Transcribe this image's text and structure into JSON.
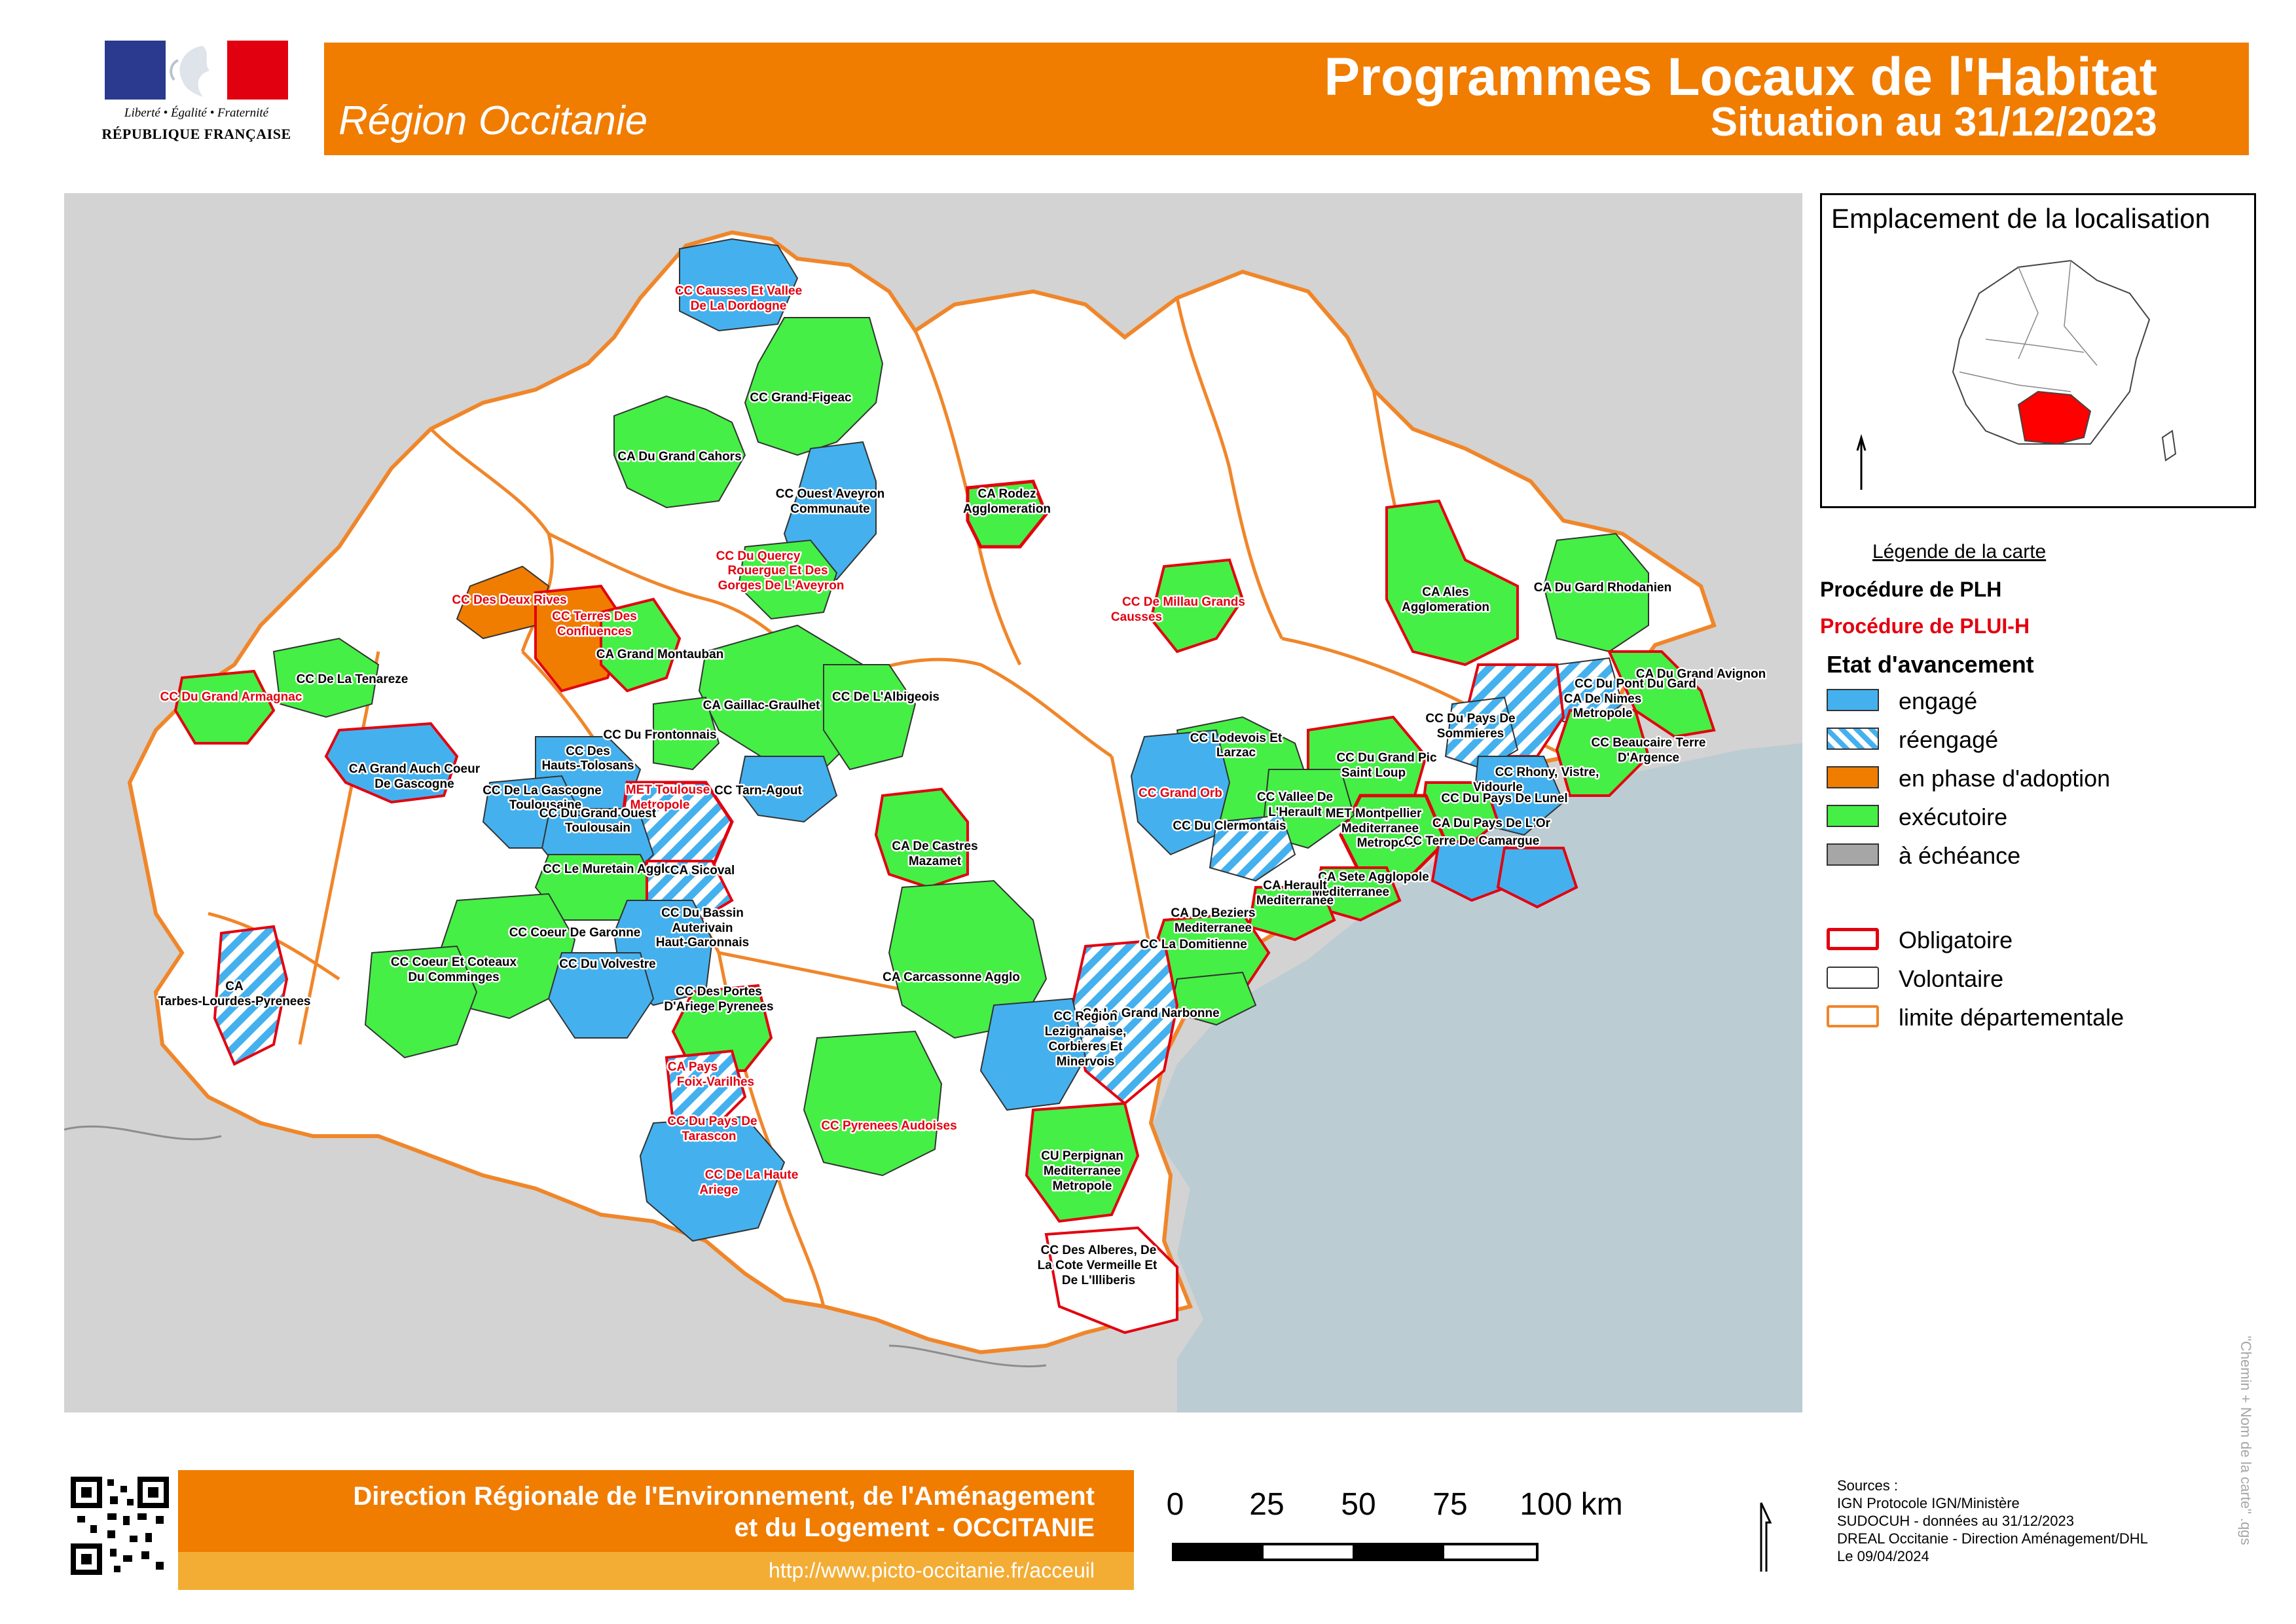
{
  "header": {
    "title": "Programmes Locaux de l'Habitat",
    "subtitle": "Situation au 31/12/2023",
    "region": "Région Occitanie",
    "logo": {
      "motto": "Liberté • Égalité • Fraternité",
      "name": "RÉPUBLIQUE FRANÇAISE"
    }
  },
  "locator": {
    "title": "Emplacement de la localisation",
    "highlight_color": "#ff0000"
  },
  "legend": {
    "title": "Légende de la carte",
    "procedure_plh": "Procédure de PLH",
    "procedure_pluih": "Procédure de PLUI-H",
    "status_title": "Etat d'avancement",
    "statuses": [
      {
        "label": "engagé",
        "color": "#44b1ee",
        "pattern": "solid"
      },
      {
        "label": "réengagé",
        "color": "#44b1ee",
        "pattern": "hatched"
      },
      {
        "label": "en phase d'adoption",
        "color": "#f07c00",
        "pattern": "solid"
      },
      {
        "label": "exécutoire",
        "color": "#45ef45",
        "pattern": "solid"
      },
      {
        "label": "à échéance",
        "color": "#a6a6a6",
        "pattern": "solid"
      }
    ],
    "boundaries": [
      {
        "label": "Obligatoire",
        "color": "#e3000f"
      },
      {
        "label": "Volontaire",
        "color": "#333333"
      },
      {
        "label": "limite départementale",
        "color": "#f0862a"
      }
    ]
  },
  "map": {
    "colors": {
      "land_outside": "#d2d3d2",
      "sea": "#bbccd3",
      "region_fill": "#ffffff",
      "dept_line": "#f0862a",
      "obligatoire": "#e3000f"
    },
    "labels": [
      {
        "text": "CC Causses Et Vallee",
        "style": "plui"
      },
      {
        "text": "De La Dordogne",
        "style": "plui"
      },
      {
        "text": "CC Grand-Figeac",
        "style": "plh"
      },
      {
        "text": "CA Du Grand Cahors",
        "style": "plh"
      },
      {
        "text": "CC Ouest Aveyron",
        "style": "plh"
      },
      {
        "text": "Communaute",
        "style": "plh"
      },
      {
        "text": "CA Rodez",
        "style": "plh"
      },
      {
        "text": "Agglomeration",
        "style": "plh"
      },
      {
        "text": "CC Du Quercy",
        "style": "plui"
      },
      {
        "text": "Rouergue Et Des",
        "style": "plui"
      },
      {
        "text": "Gorges De L'Aveyron",
        "style": "plui"
      },
      {
        "text": "CC Des Deux Rives",
        "style": "plui"
      },
      {
        "text": "CC Terres Des",
        "style": "plui"
      },
      {
        "text": "Confluences",
        "style": "plui"
      },
      {
        "text": "CA Grand Montauban",
        "style": "plh"
      },
      {
        "text": "CC De Millau Grands",
        "style": "plui"
      },
      {
        "text": "Causses",
        "style": "plui"
      },
      {
        "text": "CA Ales",
        "style": "plh"
      },
      {
        "text": "Agglomeration",
        "style": "plh"
      },
      {
        "text": "CA Du Gard Rhodanien",
        "style": "plh"
      },
      {
        "text": "CC De La Tenareze",
        "style": "plh"
      },
      {
        "text": "CC Du Grand Armagnac",
        "style": "plui"
      },
      {
        "text": "CA Gaillac-Graulhet",
        "style": "plh"
      },
      {
        "text": "CC De L'Albigeois",
        "style": "plh"
      },
      {
        "text": "CA Du Grand Avignon",
        "style": "plh"
      },
      {
        "text": "CC Du Pont Du Gard",
        "style": "plh"
      },
      {
        "text": "CA De Nimes",
        "style": "plh"
      },
      {
        "text": "Metropole",
        "style": "plh"
      },
      {
        "text": "CC Du Frontonnais",
        "style": "plh"
      },
      {
        "text": "CA Grand Auch Coeur",
        "style": "plh"
      },
      {
        "text": "De Gascogne",
        "style": "plh"
      },
      {
        "text": "CC Des",
        "style": "plh"
      },
      {
        "text": "Hauts-Tolosans",
        "style": "plh"
      },
      {
        "text": "CC De La Gascogne",
        "style": "plh"
      },
      {
        "text": "Toulousaine",
        "style": "plh"
      },
      {
        "text": "MET Toulouse",
        "style": "plui"
      },
      {
        "text": "Metropole",
        "style": "plui"
      },
      {
        "text": "CC Tarn-Agout",
        "style": "plh"
      },
      {
        "text": "CC Du Grand Ouest",
        "style": "plh"
      },
      {
        "text": "Toulousain",
        "style": "plh"
      },
      {
        "text": "CC Lodevois Et",
        "style": "plh"
      },
      {
        "text": "Larzac",
        "style": "plh"
      },
      {
        "text": "CC Du Pays De",
        "style": "plh"
      },
      {
        "text": "Sommieres",
        "style": "plh"
      },
      {
        "text": "CC Beaucaire Terre",
        "style": "plh"
      },
      {
        "text": "D'Argence",
        "style": "plh"
      },
      {
        "text": "CC Du Grand Pic",
        "style": "plh"
      },
      {
        "text": "Saint Loup",
        "style": "plh"
      },
      {
        "text": "CC Rhony, Vistre,",
        "style": "plh"
      },
      {
        "text": "Vidourle",
        "style": "plh"
      },
      {
        "text": "CC Du Pays De Lunel",
        "style": "plh"
      },
      {
        "text": "MET Montpellier",
        "style": "plh"
      },
      {
        "text": "Mediterranee",
        "style": "plh"
      },
      {
        "text": "Metropole",
        "style": "plh"
      },
      {
        "text": "CA Du Pays De L'Or",
        "style": "plh"
      },
      {
        "text": "CC Terre De Camargue",
        "style": "plh"
      },
      {
        "text": "CC Grand Orb",
        "style": "plui"
      },
      {
        "text": "CC Vallee De",
        "style": "plh"
      },
      {
        "text": "L'Herault",
        "style": "plh"
      },
      {
        "text": "CC Du Clermontais",
        "style": "plh"
      },
      {
        "text": "CA De Castres",
        "style": "plh"
      },
      {
        "text": "Mazamet",
        "style": "plh"
      },
      {
        "text": "CC Le Muretain Agglo",
        "style": "plh"
      },
      {
        "text": "CA Sicoval",
        "style": "plh"
      },
      {
        "text": "CA Sete Agglopole",
        "style": "plh"
      },
      {
        "text": "Mediterranee",
        "style": "plh"
      },
      {
        "text": "CA Herault",
        "style": "plh"
      },
      {
        "text": "Mediterranee",
        "style": "plh"
      },
      {
        "text": "CC Coeur De Garonne",
        "style": "plh"
      },
      {
        "text": "CC Du Bassin",
        "style": "plh"
      },
      {
        "text": "Auterivain",
        "style": "plh"
      },
      {
        "text": "Haut-Garonnais",
        "style": "plh"
      },
      {
        "text": "CA De Beziers",
        "style": "plh"
      },
      {
        "text": "Mediterranee",
        "style": "plh"
      },
      {
        "text": "CC La Domitienne",
        "style": "plh"
      },
      {
        "text": "CC Coeur Et Coteaux",
        "style": "plh"
      },
      {
        "text": "Du Comminges",
        "style": "plh"
      },
      {
        "text": "CC Du Volvestre",
        "style": "plh"
      },
      {
        "text": "CA",
        "style": "plh"
      },
      {
        "text": "Tarbes-Lourdes-Pyrenees",
        "style": "plh"
      },
      {
        "text": "CA Carcassonne Agglo",
        "style": "plh"
      },
      {
        "text": "CC Des Portes",
        "style": "plh"
      },
      {
        "text": "D'Ariege Pyrenees",
        "style": "plh"
      },
      {
        "text": "CA Le Grand Narbonne",
        "style": "plh"
      },
      {
        "text": "CC Region",
        "style": "plh"
      },
      {
        "text": "Lezignanaise,",
        "style": "plh"
      },
      {
        "text": "Corbieres Et",
        "style": "plh"
      },
      {
        "text": "Minervois",
        "style": "plh"
      },
      {
        "text": "CA Pays",
        "style": "plui"
      },
      {
        "text": "Foix-Varilhes",
        "style": "plui"
      },
      {
        "text": "CC Du Pays De",
        "style": "plui"
      },
      {
        "text": "Tarascon",
        "style": "plui"
      },
      {
        "text": "CC Pyrenees Audoises",
        "style": "plui"
      },
      {
        "text": "CU Perpignan",
        "style": "plh"
      },
      {
        "text": "Mediterranee",
        "style": "plh"
      },
      {
        "text": "Metropole",
        "style": "plh"
      },
      {
        "text": "CC De La Haute",
        "style": "plui"
      },
      {
        "text": "Ariege",
        "style": "plui"
      },
      {
        "text": "CC Des Alberes, De",
        "style": "plh"
      },
      {
        "text": "La Cote Vermeille Et",
        "style": "plh"
      },
      {
        "text": "De L'Illiberis",
        "style": "plh"
      }
    ]
  },
  "footer": {
    "org_line1": "Direction Régionale de l'Environnement, de l'Aménagement",
    "org_line2": "et du Logement - OCCITANIE",
    "url": "http://www.picto-occitanie.fr/acceuil",
    "scale_ticks": [
      "0",
      "25",
      "50",
      "75",
      "100 km"
    ],
    "sources": [
      "Sources :",
      "IGN Protocole IGN/Ministère",
      "SUDOCUH - données au 31/12/2023",
      "DREAL Occitanie - Direction Aménagement/DHL",
      "Le 09/04/2024"
    ],
    "vertical_note": "\"Chemin + Nom de la carte\" .qgs"
  }
}
